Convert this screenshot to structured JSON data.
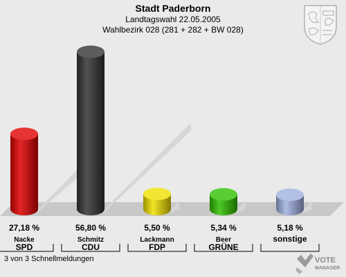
{
  "header": {
    "title": "Stadt Paderborn",
    "subtitle": "Landtagswahl 22.05.2005",
    "subtitle2": "Wahlbezirk 028 (281 + 282 + BW 028)"
  },
  "footer": {
    "note": "3 von 3 Schnellmeldungen",
    "logo_line1": "VOTE",
    "logo_line2": "MANAGER"
  },
  "chart_data": {
    "type": "bar",
    "title": "Stadt Paderborn",
    "ylim": [
      0,
      60
    ],
    "categories": [
      "SPD",
      "CDU",
      "FDP",
      "GRÜNE",
      "sonstige"
    ],
    "candidates": [
      "Nacke",
      "Schmitz",
      "Lackmann",
      "Beer",
      ""
    ],
    "values": [
      27.18,
      56.8,
      5.5,
      5.34,
      5.18
    ],
    "value_labels": [
      "27,18 %",
      "56,80 %",
      "5,50 %",
      "5,34 %",
      "5,18 %"
    ],
    "colors": [
      "#e00000",
      "#333333",
      "#f0e000",
      "#2fc000",
      "#a0b0e0"
    ]
  }
}
